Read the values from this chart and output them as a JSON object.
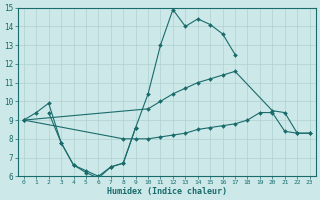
{
  "background_color": "#cce8e8",
  "grid_color": "#b0d0d0",
  "line_color": "#1a6b6b",
  "xlabel": "Humidex (Indice chaleur)",
  "ylim": [
    6,
    15
  ],
  "xlim": [
    -0.5,
    23.5
  ],
  "yticks": [
    6,
    7,
    8,
    9,
    10,
    11,
    12,
    13,
    14,
    15
  ],
  "xticks": [
    0,
    1,
    2,
    3,
    4,
    5,
    6,
    7,
    8,
    9,
    10,
    11,
    12,
    13,
    14,
    15,
    16,
    17,
    18,
    19,
    20,
    21,
    22,
    23
  ],
  "series": [
    {
      "x": [
        0,
        1,
        2,
        3,
        4,
        5,
        6,
        7,
        8,
        9,
        10,
        11,
        12,
        13,
        14,
        15,
        16,
        17
      ],
      "y": [
        9.0,
        9.4,
        9.9,
        7.8,
        6.6,
        6.3,
        6.0,
        6.5,
        6.7,
        8.6,
        10.4,
        13.0,
        14.9,
        14.0,
        14.4,
        14.1,
        13.6,
        12.5
      ]
    },
    {
      "x": [
        0,
        10,
        11,
        12,
        13,
        14,
        15,
        16,
        17,
        20,
        21,
        22,
        23
      ],
      "y": [
        9.0,
        9.6,
        10.0,
        10.4,
        10.7,
        11.0,
        11.2,
        11.4,
        11.6,
        9.5,
        9.4,
        8.3,
        8.3
      ]
    },
    {
      "x": [
        0,
        8,
        9,
        10,
        11,
        12,
        13,
        14,
        15,
        16,
        17,
        18,
        19,
        20,
        21,
        22,
        23
      ],
      "y": [
        9.0,
        8.0,
        8.0,
        8.0,
        8.1,
        8.2,
        8.3,
        8.5,
        8.6,
        8.7,
        8.8,
        9.0,
        9.4,
        9.4,
        8.4,
        8.3,
        8.3
      ]
    },
    {
      "x": [
        2,
        3,
        4,
        5,
        6,
        7,
        8,
        9
      ],
      "y": [
        9.4,
        7.8,
        6.6,
        6.2,
        5.9,
        6.5,
        6.7,
        8.6
      ]
    }
  ]
}
